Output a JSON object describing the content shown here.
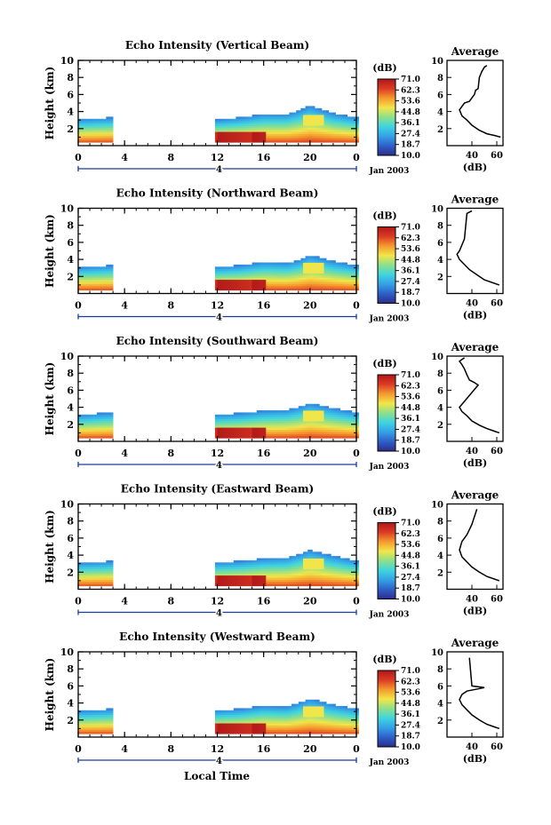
{
  "chart_data": {
    "type": "heatmap",
    "shared": {
      "ylabel": "Height (km)",
      "y_ticks": [
        2,
        4,
        6,
        8,
        10
      ],
      "ylim": [
        0,
        10
      ],
      "x_ticks": [
        "0",
        "4",
        "8",
        "12",
        "16",
        "20",
        "0"
      ],
      "xlim": [
        0,
        24
      ],
      "day_label": "4",
      "date_label": "Jan 2003",
      "xlabel": "Local Time",
      "colorbar_unit": "(dB)",
      "colorbar_ticks": [
        "71.0",
        "62.3",
        "53.6",
        "44.8",
        "36.1",
        "27.4",
        "18.7",
        "10.0"
      ],
      "colorbar_range": [
        10.0,
        71.0
      ],
      "colorbar_colors": [
        "#2b2d8c",
        "#2f5fc8",
        "#35a0e6",
        "#3fd4e0",
        "#8de08a",
        "#f2e64a",
        "#f59a2e",
        "#dc3a24",
        "#b01818"
      ],
      "profile_title": "Average",
      "profile_xlabel": "(dB)",
      "profile_x_ticks": [
        40,
        60
      ],
      "profile_xlim": [
        20,
        65
      ],
      "no_data_interval": [
        3.2,
        11.6
      ]
    },
    "panels": [
      {
        "title": "Echo Intensity (Vertical Beam)",
        "echo_top_km": [
          [
            0,
            3.0
          ],
          [
            3.2,
            3.2
          ],
          [
            11.6,
            2.9
          ],
          [
            14,
            3.2
          ],
          [
            16,
            3.6
          ],
          [
            18,
            3.6
          ],
          [
            19,
            4.0
          ],
          [
            20,
            4.6
          ],
          [
            22,
            3.7
          ],
          [
            24,
            3.2
          ]
        ],
        "profile": [
          [
            52,
            9.4
          ],
          [
            50,
            9.2
          ],
          [
            48,
            8.7
          ],
          [
            46,
            8.0
          ],
          [
            45,
            6.7
          ],
          [
            43,
            6.5
          ],
          [
            42,
            6.0
          ],
          [
            40,
            5.6
          ],
          [
            38,
            5.2
          ],
          [
            34,
            5.0
          ],
          [
            30,
            4.2
          ],
          [
            32,
            3.5
          ],
          [
            36,
            3.0
          ],
          [
            40,
            2.4
          ],
          [
            46,
            1.8
          ],
          [
            52,
            1.4
          ],
          [
            58,
            1.2
          ],
          [
            63,
            1.0
          ]
        ]
      },
      {
        "title": "Echo Intensity (Northward Beam)",
        "echo_top_km": [
          [
            0,
            3.0
          ],
          [
            3.2,
            3.2
          ],
          [
            11.6,
            3.0
          ],
          [
            14,
            3.2
          ],
          [
            16,
            3.6
          ],
          [
            18,
            3.5
          ],
          [
            19,
            3.8
          ],
          [
            20,
            4.4
          ],
          [
            22,
            3.7
          ],
          [
            24,
            3.2
          ]
        ],
        "profile": [
          [
            40,
            9.7
          ],
          [
            36,
            9.4
          ],
          [
            34,
            6.4
          ],
          [
            30,
            5.0
          ],
          [
            28,
            4.6
          ],
          [
            30,
            4.0
          ],
          [
            34,
            3.4
          ],
          [
            38,
            2.8
          ],
          [
            44,
            2.2
          ],
          [
            50,
            1.6
          ],
          [
            56,
            1.3
          ],
          [
            62,
            1.0
          ]
        ]
      },
      {
        "title": "Echo Intensity (Southward Beam)",
        "echo_top_km": [
          [
            0,
            3.0
          ],
          [
            3.2,
            3.3
          ],
          [
            11.6,
            3.0
          ],
          [
            14,
            3.2
          ],
          [
            16,
            3.5
          ],
          [
            18,
            3.6
          ],
          [
            19,
            3.9
          ],
          [
            20,
            4.4
          ],
          [
            22,
            3.8
          ],
          [
            24,
            3.3
          ]
        ],
        "profile": [
          [
            34,
            9.8
          ],
          [
            30,
            9.4
          ],
          [
            32,
            9.0
          ],
          [
            34,
            8.5
          ],
          [
            36,
            7.8
          ],
          [
            38,
            7.2
          ],
          [
            42,
            6.9
          ],
          [
            45,
            6.6
          ],
          [
            30,
            4.0
          ],
          [
            32,
            3.5
          ],
          [
            36,
            3.0
          ],
          [
            40,
            2.4
          ],
          [
            46,
            1.9
          ],
          [
            52,
            1.5
          ],
          [
            58,
            1.2
          ],
          [
            62,
            1.0
          ]
        ]
      },
      {
        "title": "Echo Intensity (Eastward Beam)",
        "echo_top_km": [
          [
            0,
            3.0
          ],
          [
            3.2,
            3.2
          ],
          [
            11.6,
            3.0
          ],
          [
            14,
            3.2
          ],
          [
            16,
            3.5
          ],
          [
            18,
            3.6
          ],
          [
            19,
            4.0
          ],
          [
            20,
            4.5
          ],
          [
            22,
            3.8
          ],
          [
            24,
            3.2
          ]
        ],
        "profile": [
          [
            44,
            9.4
          ],
          [
            40,
            7.6
          ],
          [
            38,
            7.0
          ],
          [
            36,
            6.4
          ],
          [
            34,
            6.0
          ],
          [
            32,
            5.6
          ],
          [
            30,
            4.6
          ],
          [
            32,
            3.8
          ],
          [
            36,
            3.2
          ],
          [
            40,
            2.6
          ],
          [
            46,
            2.0
          ],
          [
            52,
            1.5
          ],
          [
            58,
            1.2
          ],
          [
            62,
            1.0
          ]
        ]
      },
      {
        "title": "Echo Intensity (Westward Beam)",
        "echo_top_km": [
          [
            0,
            3.0
          ],
          [
            3.2,
            3.2
          ],
          [
            11.6,
            3.0
          ],
          [
            14,
            3.2
          ],
          [
            16,
            3.6
          ],
          [
            18,
            3.5
          ],
          [
            19,
            3.9
          ],
          [
            20,
            4.4
          ],
          [
            22,
            3.7
          ],
          [
            24,
            3.2
          ]
        ],
        "profile": [
          [
            38,
            9.3
          ],
          [
            40,
            6.0
          ],
          [
            50,
            5.8
          ],
          [
            36,
            5.4
          ],
          [
            32,
            5.0
          ],
          [
            30,
            4.4
          ],
          [
            32,
            3.8
          ],
          [
            36,
            3.2
          ],
          [
            40,
            2.6
          ],
          [
            46,
            2.0
          ],
          [
            52,
            1.5
          ],
          [
            58,
            1.2
          ],
          [
            62,
            1.0
          ]
        ]
      }
    ]
  }
}
